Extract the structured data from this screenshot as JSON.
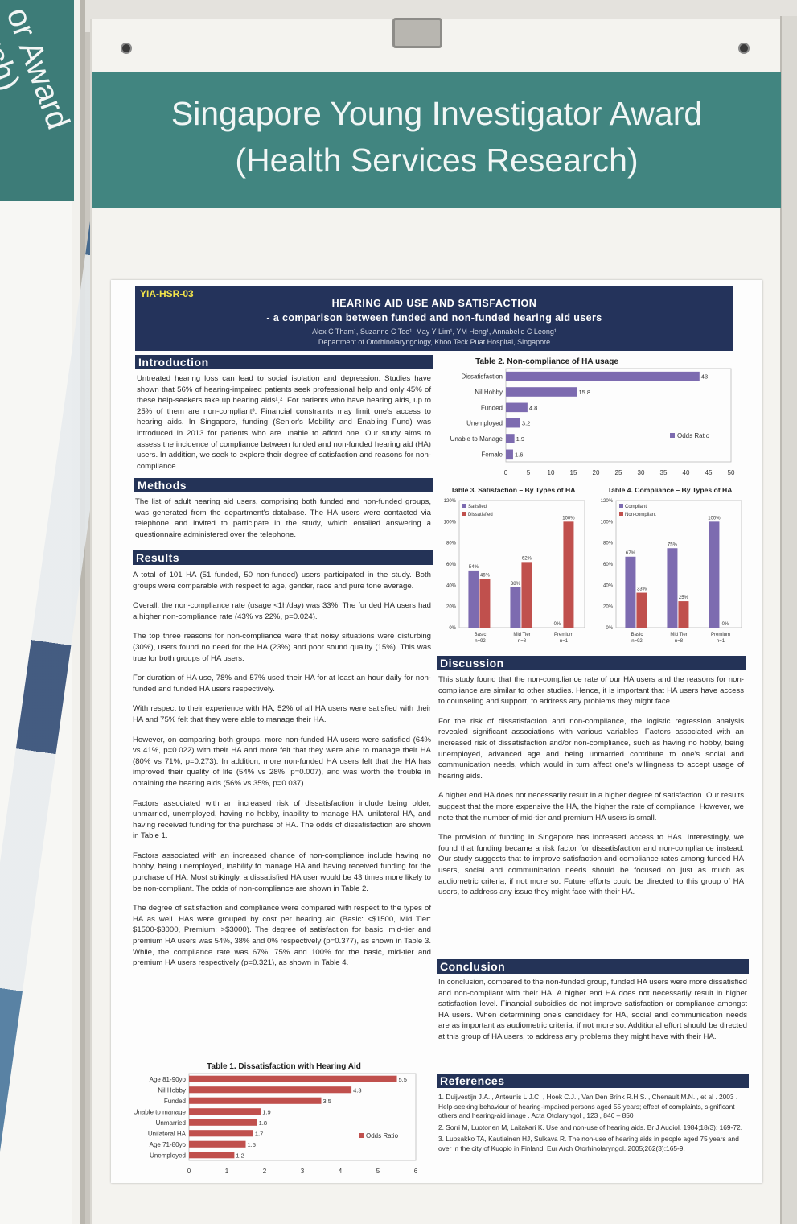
{
  "board": {
    "title_line1": "Singapore Young Investigator Award",
    "title_line2": "(Health Services Research)",
    "left_board_text": "or Award\narch)"
  },
  "poster": {
    "code": "YIA-HSR-03",
    "title": "HEARING AID USE AND SATISFACTION",
    "subtitle": "- a comparison between funded and non-funded hearing aid users",
    "authors": "Alex C Tham¹, Suzanne C Teo¹, May Y Lim¹, YM Heng¹, Annabelle C Leong¹",
    "affiliation": "Department of Otorhinolaryngology, Khoo Teck Puat Hospital, Singapore"
  },
  "sections": {
    "introduction": {
      "heading": "Introduction",
      "text": "Untreated hearing loss can lead to social isolation and depression. Studies have shown that 56% of hearing-impaired patients seek professional help and only 45% of these help-seekers take up hearing aids¹,². For patients who have hearing aids, up to 25% of them are non-compliant³. Financial constraints may limit one's access to hearing aids. In Singapore, funding (Senior's Mobility and Enabling Fund) was introduced in 2013 for patients who are unable to afford one. Our study aims to assess the incidence of compliance between funded and non-funded hearing aid (HA) users. In addition, we seek to explore their degree of satisfaction and reasons for non-compliance."
    },
    "methods": {
      "heading": "Methods",
      "text": "The list of adult hearing aid users, comprising both funded and non-funded groups, was generated from the department's database. The HA users were contacted via telephone and invited to participate in the study, which entailed answering a questionnaire administered over the telephone."
    },
    "results": {
      "heading": "Results",
      "paragraphs": [
        "A total of 101 HA (51 funded, 50 non-funded) users participated in the study. Both groups were comparable with respect to age, gender, race and pure tone average.",
        "Overall, the non-compliance rate (usage <1h/day) was 33%. The funded HA users had a higher non-compliance rate (43% vs 22%, p=0.024).",
        "The top three reasons for non-compliance were that noisy situations were disturbing (30%), users found no need for the HA (23%) and poor sound quality (15%). This was true for both groups of HA users.",
        "For duration of HA use, 78% and 57% used their HA for at least an hour daily for non-funded and funded HA users respectively.",
        "With respect to their experience with HA, 52% of all HA users were satisfied with their HA and 75% felt that they were able to manage their HA.",
        "However, on comparing both groups, more non-funded HA users were satisfied (64% vs 41%, p=0.022) with their HA and more felt that they were able to manage their HA (80% vs 71%, p=0.273). In addition, more non-funded HA users felt that the HA has improved their quality of life (54% vs 28%, p=0.007), and was worth the trouble in obtaining the hearing aids (56% vs 35%, p=0.037).",
        "Factors associated with an increased risk of dissatisfaction include being older, unmarried, unemployed, having no hobby, inability to manage HA, unilateral HA, and having received funding for the purchase of HA. The odds of dissatisfaction are shown in Table 1.",
        "Factors associated with an increased chance of non-compliance include having no hobby, being unemployed, inability to manage HA and having received funding for the purchase of HA. Most strikingly, a dissatisfied HA user would be 43 times more likely to be non-compliant. The odds of non-compliance are shown in Table 2.",
        "The degree of satisfaction and compliance were compared with respect to the types of HA as well. HAs were grouped by cost per hearing aid (Basic: <$1500, Mid Tier: $1500-$3000, Premium: >$3000). The degree of satisfaction for basic, mid-tier and premium HA users was 54%, 38% and 0% respectively (p=0.377), as shown in Table 3. While, the compliance rate was 67%, 75% and 100% for the basic, mid-tier and premium HA users respectively (p=0.321), as shown in Table 4."
      ]
    },
    "discussion": {
      "heading": "Discussion",
      "paragraphs": [
        "This study found that the non-compliance rate of our HA users and the reasons for non-compliance are similar to other studies. Hence, it is important that HA users have access to counseling and support, to address any problems they might face.",
        "For the risk of dissatisfaction and non-compliance, the logistic regression analysis revealed significant associations with various variables. Factors associated with an increased risk of dissatisfaction and/or non-compliance, such as having no hobby, being unemployed, advanced age and being unmarried contribute to one's social and communication needs, which would in turn affect one's willingness to accept usage of hearing aids.",
        "A higher end HA does not necessarily result in a higher degree of satisfaction. Our results suggest that the more expensive the HA, the higher the rate of compliance. However, we note that the number of mid-tier and premium HA users is small.",
        "The provision of funding in Singapore has increased access to HAs. Interestingly, we found that funding became a risk factor for dissatisfaction and non-compliance instead. Our study suggests that to improve satisfaction and compliance rates among funded HA users, social and communication needs should be focused on just as much as audiometric criteria, if not more so. Future efforts could be directed to this group of HA users, to address any issue they might face with their HA."
      ]
    },
    "conclusion": {
      "heading": "Conclusion",
      "text": "In conclusion, compared to the non-funded group, funded HA users were more dissatisfied and non-compliant with their HA. A higher end HA does not necessarily result in higher satisfaction level. Financial subsidies do not improve satisfaction or compliance amongst HA users. When determining one's candidacy for HA, social and communication needs are as important as audiometric criteria, if not more so. Additional effort should be directed at this group of HA users, to address any problems they might have with their HA."
    },
    "references": {
      "heading": "References",
      "items": [
        "1.  Duijvestijn J.A. , Anteunis L.J.C. , Hoek C.J. , Van Den Brink R.H.S. , Chenault M.N. , et al . 2003 . Help-seeking behaviour of hearing-impaired persons aged 55 years; effect of complaints, significant others and hearing-aid image . Acta Otolaryngol , 123 , 846 – 850",
        "2.  Sorri M, Luotonen M, Laitakari K. Use and non-use of hearing aids. Br J Audiol. 1984;18(3): 169-72.",
        "3.  Lupsakko TA, Kautiainen HJ, Sulkava R. The non-use of hearing aids in people aged 75 years and over in the city of Kuopio in Finland. Eur Arch Otorhinolaryngol. 2005;262(3):165-9."
      ]
    }
  },
  "colors": {
    "board_teal": "#418580",
    "poster_navy": "#24335b",
    "purple_series": "#7d6bb0",
    "red_series": "#c0504d",
    "code_yellow": "#f3e54a"
  },
  "chart_data": [
    {
      "id": "table1",
      "type": "bar",
      "orientation": "horizontal",
      "title": "Table 1. Dissatisfaction with Hearing Aid",
      "categories": [
        "Age 81-90yo",
        "Nil Hobby",
        "Funded",
        "Unable to manage",
        "Unmarried",
        "Unilateral HA",
        "Age 71-80yo",
        "Unemployed"
      ],
      "series": [
        {
          "name": "Odds Ratio",
          "values": [
            5.5,
            4.3,
            3.5,
            1.9,
            1.8,
            1.7,
            1.5,
            1.2
          ]
        }
      ],
      "xlim": [
        0,
        6
      ],
      "xticks": [
        "0",
        "1",
        "2",
        "3",
        "4",
        "5",
        "6"
      ],
      "legend": "right"
    },
    {
      "id": "table2",
      "type": "bar",
      "orientation": "horizontal",
      "title": "Table 2. Non-compliance of HA usage",
      "categories": [
        "Dissatisfaction",
        "Nil Hobby",
        "Funded",
        "Unemployed",
        "Unable to Manage",
        "Female"
      ],
      "series": [
        {
          "name": "Odds Ratio",
          "values": [
            43,
            15.8,
            4.8,
            3.2,
            1.9,
            1.6
          ]
        }
      ],
      "xlim": [
        0,
        50
      ],
      "xticks": [
        "0",
        "5",
        "10",
        "15",
        "20",
        "25",
        "30",
        "35",
        "40",
        "45",
        "50"
      ],
      "legend": "right"
    },
    {
      "id": "table3",
      "type": "bar",
      "title": "Table 3. Satisfaction – By Types of HA",
      "categories": [
        "Basic\nn=92",
        "Mid Tier\nn=8",
        "Premium\nn=1"
      ],
      "series": [
        {
          "name": "Satisfied",
          "values": [
            54,
            38,
            0
          ]
        },
        {
          "name": "Dissatisfied",
          "values": [
            46,
            62,
            100
          ]
        }
      ],
      "ylim": [
        0,
        120
      ],
      "yticks": [
        "0%",
        "20%",
        "40%",
        "60%",
        "80%",
        "100%",
        "120%"
      ],
      "legend": "top-left"
    },
    {
      "id": "table4",
      "type": "bar",
      "title": "Table 4. Compliance – By Types of HA",
      "categories": [
        "Basic\nn=92",
        "Mid Tier\nn=8",
        "Premium\nn=1"
      ],
      "series": [
        {
          "name": "Compliant",
          "values": [
            67,
            75,
            100
          ]
        },
        {
          "name": "Non-compliant",
          "values": [
            33,
            25,
            0
          ]
        }
      ],
      "ylim": [
        0,
        120
      ],
      "yticks": [
        "0%",
        "20%",
        "40%",
        "60%",
        "80%",
        "100%",
        "120%"
      ],
      "legend": "top-left"
    }
  ]
}
